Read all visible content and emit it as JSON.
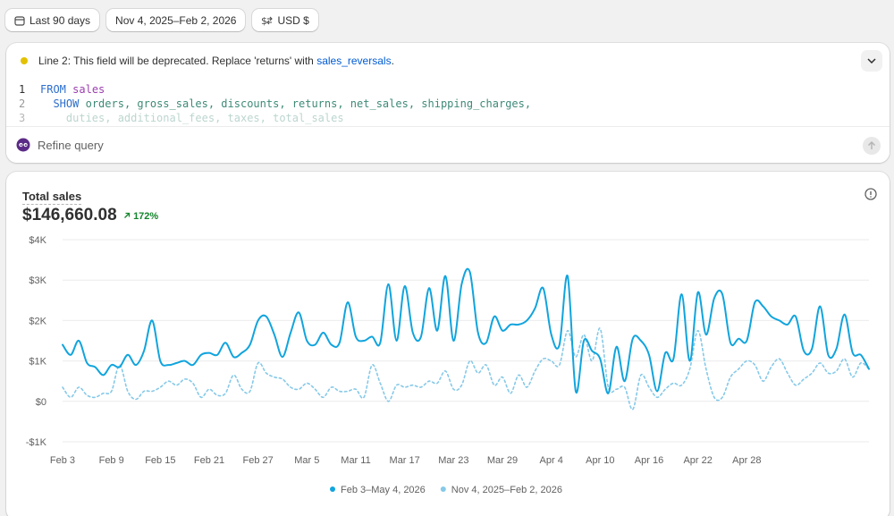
{
  "toolbar": {
    "range_label": "Last 90 days",
    "compare_label": "Nov 4, 2025–Feb 2, 2026",
    "currency_label": "USD $"
  },
  "query": {
    "warning_prefix": "Line 2: This field will be deprecated. Replace 'returns' with ",
    "warning_link": "sales_reversals",
    "warning_suffix": ".",
    "line_numbers": [
      "1",
      "2",
      "3"
    ],
    "line1_keyword": "FROM",
    "line1_table": "sales",
    "line2_keyword": "SHOW",
    "line2_fields": "orders, gross_sales, discounts, returns, net_sales, shipping_charges,",
    "line3_fields": "duties, additional_fees, taxes, total_sales",
    "refine_placeholder": "Refine query"
  },
  "metric": {
    "title": "Total sales",
    "value": "$146,660.08",
    "change": "172%"
  },
  "colors": {
    "primary": "#11a4dd",
    "comparison": "#86c9e8",
    "accent_link": "#005bd3",
    "positive": "#14852c",
    "warning_dot": "#e3c100"
  },
  "chart_data": {
    "type": "line",
    "ylim": [
      -1000,
      4000
    ],
    "y_ticks": [
      -1000,
      0,
      1000,
      2000,
      3000,
      4000
    ],
    "y_tick_labels": [
      "-$1K",
      "$0",
      "$1K",
      "$2K",
      "$3K",
      "$4K"
    ],
    "x_tick_labels": [
      "Feb 3",
      "Feb 9",
      "Feb 15",
      "Feb 21",
      "Feb 27",
      "Mar 5",
      "Mar 11",
      "Mar 17",
      "Mar 23",
      "Mar 29",
      "Apr 4",
      "Apr 10",
      "Apr 16",
      "Apr 22",
      "Apr 28"
    ],
    "legend_position": "bottom",
    "grid": true,
    "series": [
      {
        "name": "Feb 3–May 4, 2026",
        "style": "solid",
        "values": [
          1400,
          1150,
          1500,
          950,
          850,
          650,
          900,
          850,
          1150,
          900,
          1250,
          2000,
          1000,
          900,
          950,
          1000,
          900,
          1150,
          1200,
          1150,
          1450,
          1100,
          1200,
          1400,
          2000,
          2100,
          1650,
          1100,
          1700,
          2200,
          1500,
          1400,
          1700,
          1400,
          1450,
          2450,
          1600,
          1500,
          1600,
          1450,
          2900,
          1500,
          2850,
          1700,
          1600,
          2800,
          1750,
          3100,
          1500,
          2900,
          3200,
          1700,
          1450,
          2100,
          1750,
          1900,
          1900,
          2000,
          2300,
          2800,
          1650,
          1400,
          3100,
          250,
          1500,
          1250,
          1050,
          200,
          1350,
          500,
          1550,
          1500,
          1150,
          250,
          1200,
          1050,
          2650,
          1000,
          2700,
          1650,
          2550,
          2650,
          1450,
          1550,
          1500,
          2450,
          2350,
          2100,
          2000,
          1900,
          2100,
          1250,
          1300,
          2350,
          1150,
          1300,
          2150,
          1200,
          1150,
          800
        ]
      },
      {
        "name": "Nov 4, 2025–Feb 2, 2026",
        "style": "dotted",
        "values": [
          350,
          100,
          350,
          150,
          100,
          200,
          250,
          900,
          250,
          50,
          250,
          250,
          350,
          500,
          400,
          550,
          450,
          100,
          300,
          150,
          200,
          650,
          300,
          250,
          950,
          700,
          600,
          550,
          350,
          300,
          450,
          300,
          100,
          350,
          250,
          250,
          300,
          100,
          900,
          450,
          0,
          400,
          350,
          400,
          350,
          500,
          450,
          750,
          300,
          400,
          1000,
          700,
          900,
          400,
          600,
          200,
          650,
          350,
          750,
          1050,
          1000,
          900,
          1750,
          1100,
          1650,
          1000,
          1800,
          350,
          300,
          350,
          -200,
          650,
          350,
          100,
          300,
          450,
          400,
          800,
          1750,
          800,
          100,
          100,
          600,
          800,
          1000,
          900,
          500,
          850,
          1050,
          700,
          400,
          550,
          700,
          950,
          700,
          750,
          1050,
          600,
          950,
          800
        ]
      }
    ]
  }
}
